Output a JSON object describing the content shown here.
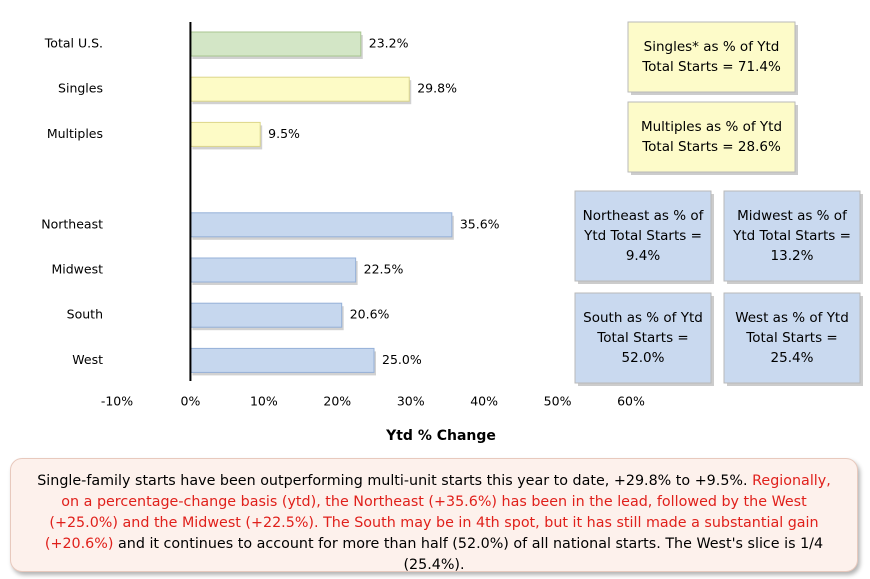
{
  "chart_data": {
    "type": "bar",
    "orientation": "horizontal",
    "categories": [
      "Total U.S.",
      "Singles",
      "Multiples",
      null,
      "Northeast",
      "Midwest",
      "South",
      "West"
    ],
    "values": [
      23.2,
      29.8,
      9.5,
      null,
      35.6,
      22.5,
      20.6,
      25.0
    ],
    "value_labels": [
      "23.2%",
      "29.8%",
      "9.5%",
      null,
      "35.6%",
      "22.5%",
      "20.6%",
      "25.0%"
    ],
    "colors": [
      "#d3e6c6",
      "#fdfbc6",
      "#fdfbc6",
      null,
      "#c6d7ee",
      "#c6d7ee",
      "#c6d7ee",
      "#c6d7ee"
    ],
    "xlim": [
      -10,
      60
    ],
    "xticks": [
      {
        "value": -10,
        "label": "-10%"
      },
      {
        "value": 0,
        "label": "0%"
      },
      {
        "value": 10,
        "label": "10%"
      },
      {
        "value": 20,
        "label": "20%"
      },
      {
        "value": 30,
        "label": "30%"
      },
      {
        "value": 40,
        "label": "40%"
      },
      {
        "value": 50,
        "label": "50%"
      },
      {
        "value": 60,
        "label": "60%"
      }
    ],
    "xlabel": "Ytd % Change",
    "grid": false,
    "annotations": [
      {
        "lines": [
          "Singles* as % of Ytd",
          "Total Starts = 71.4%"
        ],
        "color": "#fdfbc9"
      },
      {
        "lines": [
          "Multiples as % of Ytd",
          "Total Starts = 28.6%"
        ],
        "color": "#fdfbc9"
      },
      {
        "lines": [
          "Northeast as % of",
          "Ytd Total Starts =",
          "9.4%"
        ],
        "color": "#c9d9ef"
      },
      {
        "lines": [
          "Midwest as % of",
          "Ytd Total Starts =",
          "13.2%"
        ],
        "color": "#c9d9ef"
      },
      {
        "lines": [
          "South as % of Ytd",
          "Total Starts =",
          "52.0%"
        ],
        "color": "#c9d9ef"
      },
      {
        "lines": [
          "West as % of Ytd",
          "Total Starts =",
          "25.4%"
        ],
        "color": "#c9d9ef"
      }
    ],
    "note": [
      {
        "text": "Single-family starts have been outperforming multi-unit starts this year to date, +29.8% to +9.5%. ",
        "color": "#000000"
      },
      {
        "text": "Regionally, on a percentage-change basis (ytd), the Northeast (+35.6%) has been in the lead, followed by the West (+25.0%) and the Midwest (+22.5%). The South may be in 4th spot, but it has still made a substantial gain (+20.6%)",
        "color": "#e0201b"
      },
      {
        "text": " and it continues to account for more than half (52.0%) of all national starts. The West's slice is 1/4 (25.4%).",
        "color": "#000000"
      }
    ]
  }
}
